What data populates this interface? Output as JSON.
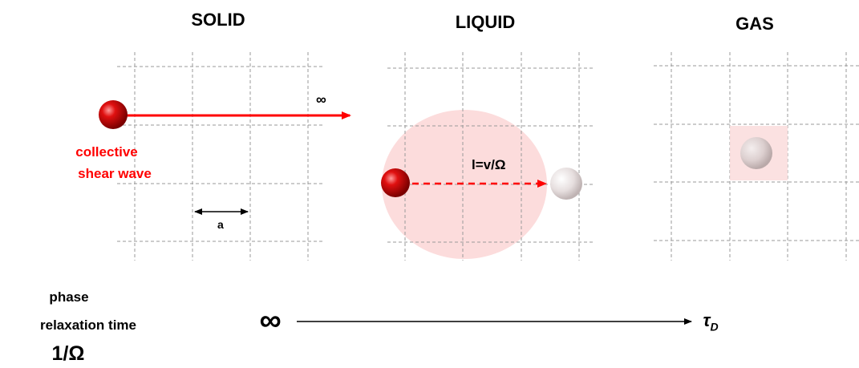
{
  "titles": {
    "solid": "SOLID",
    "liquid": "LIQUID",
    "gas": "GAS"
  },
  "solid_panel": {
    "infinity_label": "∞",
    "caption_line1": "collective",
    "caption_line2": "shear wave",
    "spacing_label": "a"
  },
  "liquid_panel": {
    "path_label": "l=v/Ω"
  },
  "bottom_axis": {
    "phase_label": "phase",
    "relaxation_label": "relaxation time",
    "inverse_omega": "1/Ω",
    "start_label": "∞",
    "end_label": "τ",
    "end_subscript": "D"
  },
  "colors": {
    "particle_red": "#cc0000",
    "arrow_red": "#ff0000",
    "halo_pink": "#fcdcdc",
    "grid_gray": "#9a9a9a",
    "ghost_particle": "#e8e4e4"
  }
}
